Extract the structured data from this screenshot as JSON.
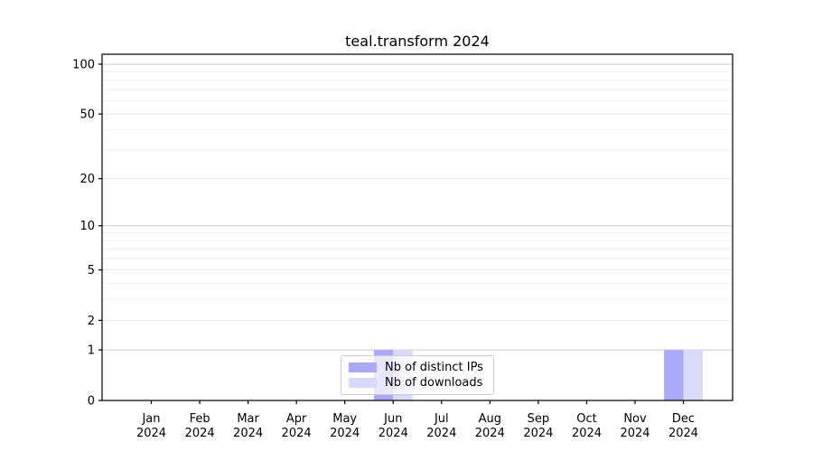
{
  "chart_data": {
    "type": "bar",
    "title": "teal.transform 2024",
    "categories": [
      "Jan",
      "Feb",
      "Mar",
      "Apr",
      "May",
      "Jun",
      "Jul",
      "Aug",
      "Sep",
      "Oct",
      "Nov",
      "Dec"
    ],
    "year_label": "2024",
    "series": [
      {
        "name": "Nb of distinct IPs",
        "color": "#a9a9f7",
        "values": [
          0,
          0,
          0,
          0,
          0,
          1,
          0,
          0,
          0,
          0,
          0,
          1
        ]
      },
      {
        "name": "Nb of downloads",
        "color": "#d9d9fa",
        "values": [
          0,
          0,
          0,
          0,
          0,
          1,
          0,
          0,
          0,
          0,
          0,
          1
        ]
      }
    ],
    "yticks": [
      0,
      1,
      2,
      5,
      10,
      20,
      50,
      100
    ],
    "yscale": "log1p",
    "ylim": [
      0,
      115
    ],
    "xlabel": "",
    "ylabel": "",
    "grid": "horizontal-major-and-minor",
    "legend_position": "lower-center-inside"
  },
  "colors": {
    "grid_decade": "#cbcbcb",
    "grid_major": "#e7e7e7",
    "grid_minor": "#f0f0f0",
    "spine": "#000000"
  }
}
